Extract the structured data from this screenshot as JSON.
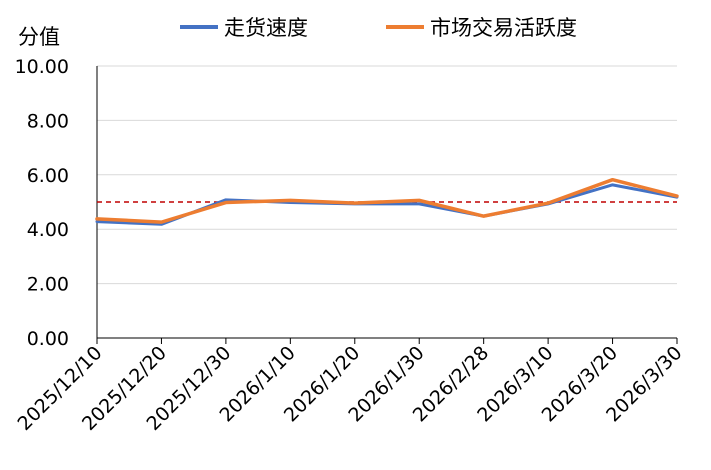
{
  "chart_data": {
    "type": "line",
    "ylabel": "分值",
    "xlabel": "",
    "title": "",
    "ylim": [
      0,
      10
    ],
    "yticks": [
      "0.00",
      "2.00",
      "4.00",
      "6.00",
      "8.00",
      "10.00"
    ],
    "categories": [
      "2025/12/10",
      "2025/12/20",
      "2025/12/30",
      "2026/1/10",
      "2026/1/20",
      "2026/1/30",
      "2026/2/28",
      "2026/3/10",
      "2026/3/20",
      "2026/3/30"
    ],
    "series": [
      {
        "name": "走货速度",
        "color": "#4472C4",
        "values": [
          4.28,
          4.18,
          5.08,
          4.98,
          4.93,
          4.93,
          4.48,
          4.93,
          5.63,
          5.18
        ]
      },
      {
        "name": "市场交易活跃度",
        "color": "#ED7D31",
        "values": [
          4.38,
          4.26,
          4.98,
          5.06,
          4.96,
          5.06,
          4.48,
          4.96,
          5.82,
          5.22
        ]
      }
    ],
    "reference_line": {
      "value": 5.0,
      "color": "#C00000",
      "style": "dashed"
    },
    "grid": true,
    "legend_position": "top"
  }
}
